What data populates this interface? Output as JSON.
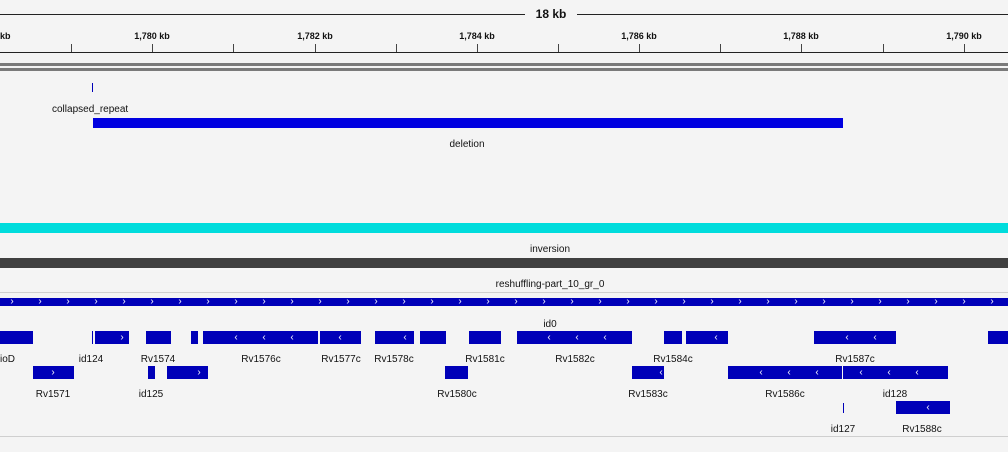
{
  "ruler": {
    "span_label": "18 kb",
    "left_edge_label": "kb",
    "tick_labels": [
      "1,780 kb",
      "1,782 kb",
      "1,784 kb",
      "1,786 kb",
      "1,788 kb",
      "1,790 kb"
    ]
  },
  "tracks": {
    "sv_labels": {
      "collapsed_repeat": "collapsed_repeat",
      "deletion": "deletion",
      "inversion": "inversion",
      "reshuffling": "reshuffling-part_10_gr_0"
    },
    "genes": {
      "id0": "id0",
      "row1": [
        "ioD",
        "id124",
        "Rv1574",
        "Rv1576c",
        "Rv1577c",
        "Rv1578c",
        "Rv1581c",
        "Rv1582c",
        "Rv1584c",
        "Rv1587c"
      ],
      "row2": [
        "Rv1571",
        "id125",
        "Rv1580c",
        "Rv1583c",
        "Rv1586c",
        "id128"
      ],
      "row3": [
        "id127",
        "Rv1588c"
      ]
    }
  },
  "colors": {
    "feature": "#0000b8",
    "deletion": "#0000e0",
    "inversion": "#00dcdc",
    "reshuffling": "#404040"
  }
}
